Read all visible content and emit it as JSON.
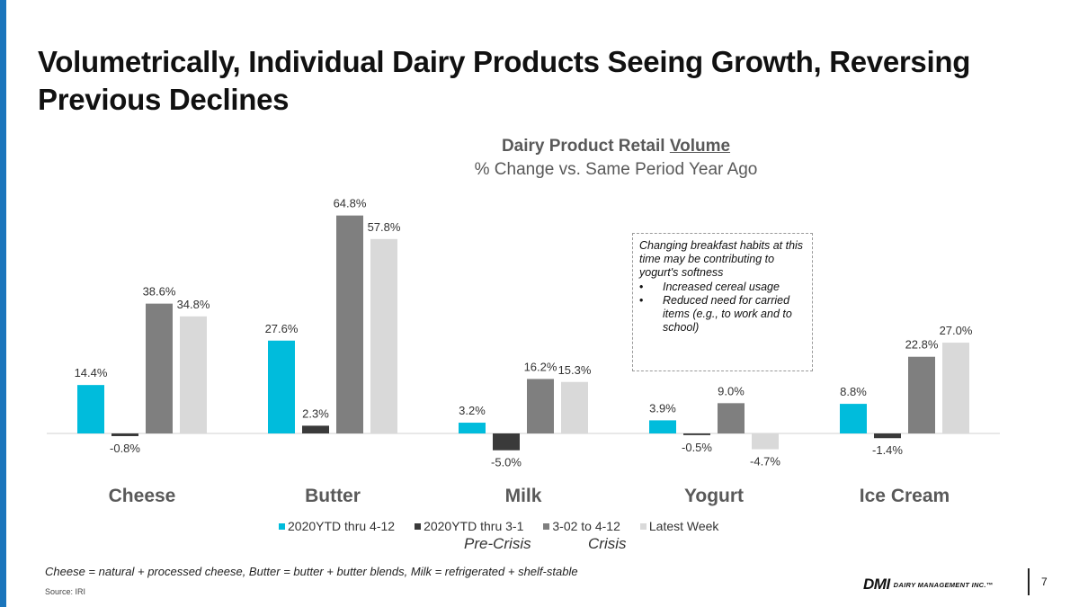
{
  "slide": {
    "title": "Volumetrically, Individual Dairy Products Seeing Growth, Reversing Previous Declines",
    "page_number": "7",
    "footnote": "Cheese = natural + processed cheese, Butter = butter + butter blends, Milk = refrigerated + shelf-stable",
    "source": "Source: IRI",
    "logo_mark": "DMI",
    "logo_text": "DAIRY MANAGEMENT INC.™",
    "accent_color": "#1a75bc"
  },
  "chart_data": {
    "type": "bar",
    "title_prefix": "Dairy Product Retail ",
    "title_underlined": "Volume",
    "subtitle": "% Change vs. Same Period Year Ago",
    "categories": [
      "Cheese",
      "Butter",
      "Milk",
      "Yogurt",
      "Ice Cream"
    ],
    "series": [
      {
        "name": "2020YTD thru 4-12",
        "color": "#00bcdc",
        "values": [
          14.4,
          27.6,
          3.2,
          3.9,
          8.8
        ],
        "labels": [
          "14.4%",
          "27.6%",
          "3.2%",
          "3.9%",
          "8.8%"
        ]
      },
      {
        "name": "2020YTD thru 3-1",
        "color": "#3a3a3a",
        "values": [
          -0.8,
          2.3,
          -5.0,
          -0.5,
          -1.4
        ],
        "labels": [
          "-0.8%",
          "2.3%",
          "-5.0%",
          "-0.5%",
          "-1.4%"
        ]
      },
      {
        "name": "3-02 to 4-12",
        "color": "#7f7f7f",
        "values": [
          38.6,
          64.8,
          16.2,
          9.0,
          22.8
        ],
        "labels": [
          "38.6%",
          "64.8%",
          "16.2%",
          "9.0%",
          "22.8%"
        ]
      },
      {
        "name": "Latest Week",
        "color": "#d9d9d9",
        "values": [
          34.8,
          57.8,
          15.3,
          -4.7,
          27.0
        ],
        "labels": [
          "34.8%",
          "57.8%",
          "15.3%",
          "-4.7%",
          "27.0%"
        ]
      }
    ],
    "legend_position": "bottom",
    "legend_sublabels": {
      "pre_crisis": "Pre-Crisis",
      "crisis": "Crisis"
    },
    "ylim": [
      -6,
      66
    ],
    "grid": false
  },
  "callout": {
    "text": "Changing breakfast habits at this time may be contributing to yogurt's softness",
    "bullets": [
      "Increased cereal usage",
      "Reduced need for carried items (e.g., to work and to school)"
    ],
    "bullet_char": "•"
  }
}
